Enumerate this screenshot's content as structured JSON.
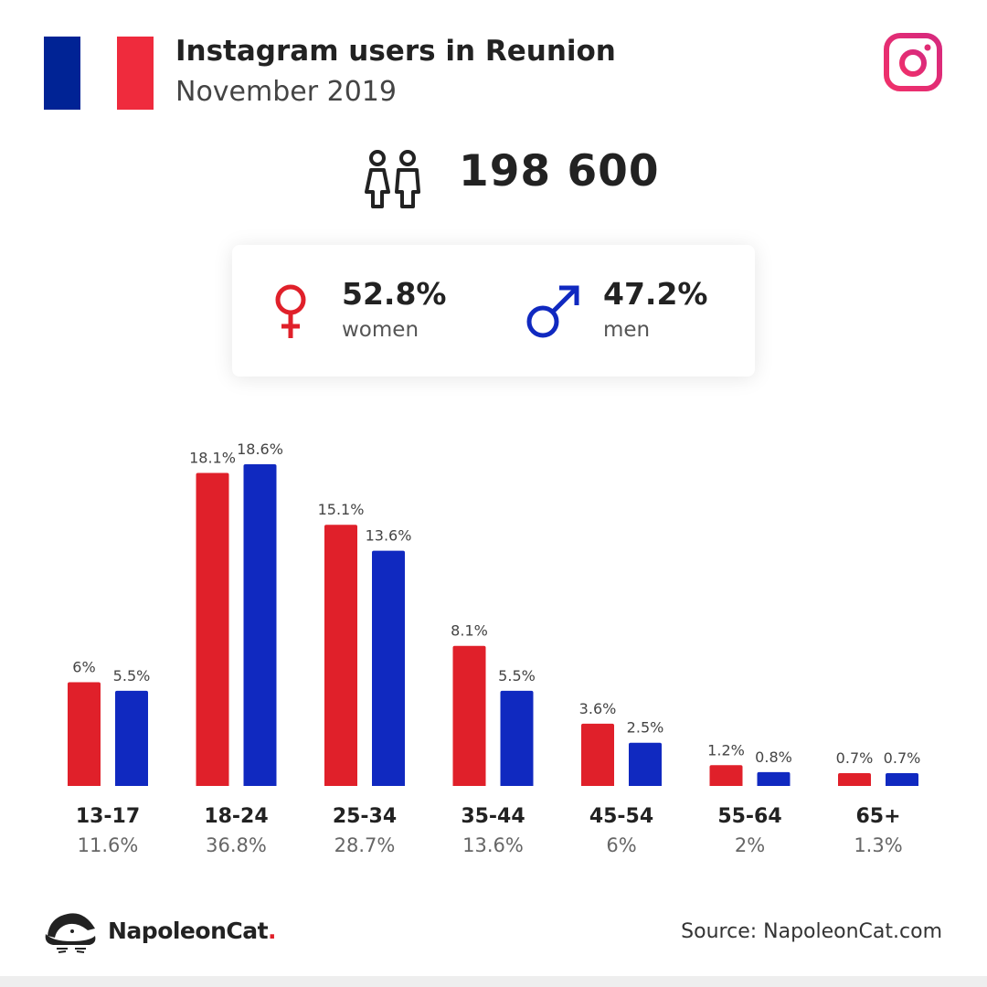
{
  "header": {
    "title": "Instagram users in Reunion",
    "subtitle": "November 2019",
    "flag_colors": [
      "#002395",
      "#ffffff",
      "#ef2b3d"
    ],
    "platform_icon": "instagram-icon"
  },
  "total": {
    "icon": "people-icon",
    "value": "198 600"
  },
  "gender": {
    "women": {
      "icon": "female-symbol-icon",
      "percent": "52.8%",
      "label": "women",
      "color": "#e0202a"
    },
    "men": {
      "icon": "male-symbol-icon",
      "percent": "47.2%",
      "label": "men",
      "color": "#1029c0"
    }
  },
  "chart_data": {
    "type": "bar",
    "categories": [
      "13-17",
      "18-24",
      "25-34",
      "35-44",
      "45-54",
      "55-64",
      "65+"
    ],
    "category_totals": [
      "11.6%",
      "36.8%",
      "28.7%",
      "13.6%",
      "6%",
      "2%",
      "1.3%"
    ],
    "series": [
      {
        "values": [
          6,
          18.1,
          15.1,
          8.1,
          3.6,
          1.2,
          0.7
        ],
        "labels": [
          "6%",
          "18.1%",
          "15.1%",
          "8.1%",
          "3.6%",
          "1.2%",
          "0.7%"
        ],
        "color": "#e0202a"
      },
      {
        "values": [
          5.5,
          18.6,
          13.6,
          5.5,
          2.5,
          0.8,
          0.7
        ],
        "labels": [
          "5.5%",
          "18.6%",
          "13.6%",
          "5.5%",
          "2.5%",
          "0.8%",
          "0.7%"
        ],
        "color": "#1029c0"
      }
    ],
    "ylim": [
      0,
      18.6
    ],
    "grid": false
  },
  "footer": {
    "brand_name": "NapoleonCat",
    "brand_dot": ".",
    "brand_icon": "napoleoncat-logo-icon",
    "source": "Source: NapoleonCat.com"
  }
}
